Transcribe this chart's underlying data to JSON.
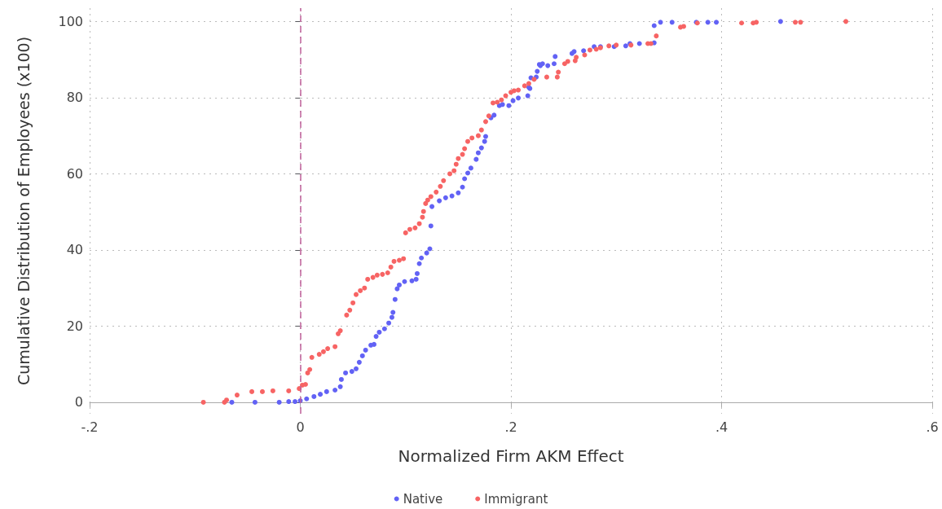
{
  "chart_data": {
    "type": "scatter",
    "xlabel": "Normalized Firm AKM Effect",
    "ylabel": "Cumulative Distribution of Employees (x100)",
    "xlim": [
      -0.2,
      0.6
    ],
    "xticks": [
      {
        "value": -0.2,
        "label": "-.2"
      },
      0,
      {
        "value": 0.2,
        "label": ".2"
      },
      {
        "value": 0.4,
        "label": ".4"
      },
      {
        "value": 0.6,
        "label": ".6"
      }
    ],
    "ylim": [
      -3,
      103.5
    ],
    "yticks": [
      0,
      20,
      40,
      60,
      80,
      100
    ],
    "grid": true,
    "legend": "bottom",
    "marker": "circle",
    "ref_lines": [
      {
        "axis": "x",
        "value": 0,
        "color": "#c0609a",
        "line_style": "dashed"
      }
    ],
    "series": [
      {
        "name": "Native",
        "color": "#6262f5",
        "x": [
          -0.065,
          -0.043,
          -0.02,
          -0.011,
          -0.005,
          0,
          0.006,
          0.013,
          0.019,
          0.025,
          0.033,
          0.038,
          0.039,
          0.043,
          0.049,
          0.053,
          0.056,
          0.059,
          0.062,
          0.067,
          0.07,
          0.072,
          0.075,
          0.08,
          0.084,
          0.087,
          0.088,
          0.09,
          0.092,
          0.094,
          0.099,
          0.106,
          0.11,
          0.111,
          0.113,
          0.115,
          0.12,
          0.123,
          0.124,
          0.125,
          0.132,
          0.138,
          0.144,
          0.15,
          0.154,
          0.156,
          0.159,
          0.162,
          0.167,
          0.169,
          0.172,
          0.175,
          0.176,
          0.181,
          0.184,
          0.189,
          0.192,
          0.198,
          0.202,
          0.207,
          0.216,
          0.217,
          0.218,
          0.219,
          0.224,
          0.225,
          0.227,
          0.228,
          0.23,
          0.235,
          0.241,
          0.242,
          0.258,
          0.26,
          0.269,
          0.279,
          0.285,
          0.298,
          0.309,
          0.313,
          0.322,
          0.336,
          0.336,
          0.342,
          0.353,
          0.376,
          0.387,
          0.395,
          0.456
        ],
        "values": [
          0,
          0,
          0,
          0.2,
          0.2,
          0.4,
          0.9,
          1.5,
          2.1,
          2.8,
          3.2,
          4.1,
          6,
          7.7,
          8.1,
          8.8,
          10.5,
          12.2,
          13.7,
          15,
          15.2,
          17.3,
          18.4,
          19.3,
          20.8,
          22.3,
          23.6,
          27,
          29.8,
          30.8,
          31.7,
          31.9,
          32.3,
          33.8,
          36.4,
          37.9,
          39.2,
          40.3,
          46.3,
          51.4,
          52.9,
          53.7,
          54.2,
          55,
          56.5,
          58.7,
          60.2,
          61.5,
          63.8,
          65.5,
          66.8,
          68.5,
          69.8,
          74.7,
          75.4,
          77.9,
          78.2,
          77.9,
          79.2,
          79.9,
          80.5,
          82.7,
          82.4,
          85.2,
          85.4,
          86.9,
          88.7,
          88.4,
          88.9,
          88.4,
          88.9,
          90.8,
          91.6,
          92.1,
          92.3,
          93.4,
          93.4,
          93.4,
          93.6,
          94.2,
          94.2,
          94.4,
          98.9,
          99.8,
          99.8,
          99.8,
          99.8,
          99.8,
          100
        ]
      },
      {
        "name": "Immigrant",
        "color": "#f76464",
        "x": [
          -0.092,
          -0.072,
          -0.07,
          -0.06,
          -0.046,
          -0.036,
          -0.026,
          -0.011,
          -0.001,
          0.002,
          0.005,
          0.007,
          0.009,
          0.011,
          0.018,
          0.022,
          0.026,
          0.033,
          0.036,
          0.038,
          0.044,
          0.047,
          0.05,
          0.053,
          0.057,
          0.061,
          0.064,
          0.069,
          0.073,
          0.078,
          0.083,
          0.086,
          0.089,
          0.094,
          0.098,
          0.1,
          0.104,
          0.109,
          0.113,
          0.116,
          0.117,
          0.119,
          0.121,
          0.124,
          0.129,
          0.133,
          0.136,
          0.142,
          0.146,
          0.148,
          0.15,
          0.154,
          0.156,
          0.159,
          0.163,
          0.169,
          0.172,
          0.176,
          0.179,
          0.183,
          0.187,
          0.191,
          0.195,
          0.2,
          0.203,
          0.207,
          0.213,
          0.217,
          0.222,
          0.234,
          0.244,
          0.245,
          0.251,
          0.254,
          0.261,
          0.262,
          0.27,
          0.275,
          0.281,
          0.285,
          0.293,
          0.3,
          0.314,
          0.33,
          0.333,
          0.338,
          0.361,
          0.364,
          0.377,
          0.419,
          0.43,
          0.433,
          0.47,
          0.475,
          0.518
        ],
        "values": [
          0,
          0,
          0.6,
          1.9,
          2.8,
          2.8,
          3,
          3,
          3.6,
          4.5,
          4.7,
          7.7,
          8.6,
          11.8,
          12.6,
          13.3,
          14.1,
          14.6,
          18,
          18.8,
          22.9,
          24.2,
          26.1,
          28.3,
          29.3,
          30,
          32.3,
          32.8,
          33.4,
          33.6,
          34,
          35.5,
          37,
          37.3,
          37.7,
          44.5,
          45.4,
          45.8,
          46.9,
          48.6,
          50.1,
          52.2,
          53.1,
          54,
          55.2,
          56.7,
          58.2,
          60,
          60.8,
          62.5,
          64,
          65.1,
          66.6,
          68.5,
          69.4,
          70,
          71.5,
          73.7,
          75.2,
          78.6,
          78.8,
          79.4,
          80.5,
          81.4,
          81.8,
          82,
          83.1,
          83.7,
          84.8,
          85.4,
          85.4,
          86.7,
          88.9,
          89.5,
          89.7,
          90.6,
          91.2,
          92.5,
          92.7,
          93.1,
          93.6,
          93.8,
          93.8,
          94.2,
          94.2,
          96.2,
          98.5,
          98.7,
          99.6,
          99.6,
          99.6,
          99.8,
          99.8,
          99.8,
          100
        ]
      }
    ]
  }
}
